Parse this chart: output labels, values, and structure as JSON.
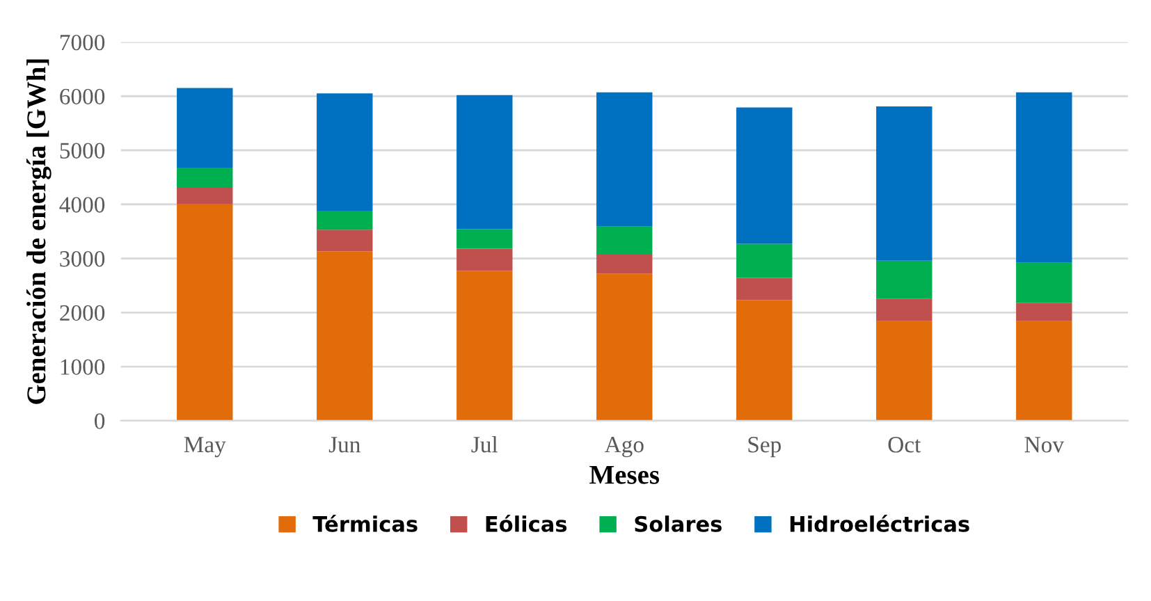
{
  "chart_data": {
    "type": "bar",
    "stacked": true,
    "xlabel": "Meses",
    "ylabel": "Generación de energía [GWh]",
    "categories": [
      "May",
      "Jun",
      "Jul",
      "Ago",
      "Sep",
      "Oct",
      "Nov"
    ],
    "series": [
      {
        "name": "Térmicas",
        "color": "#e36c0a",
        "values": [
          4000,
          3130,
          2770,
          2720,
          2230,
          1840,
          1840
        ]
      },
      {
        "name": "Eólicas",
        "color": "#c0504d",
        "values": [
          320,
          400,
          410,
          350,
          410,
          410,
          340
        ]
      },
      {
        "name": "Solares",
        "color": "#00b050",
        "values": [
          360,
          350,
          360,
          520,
          630,
          710,
          740
        ]
      },
      {
        "name": "Hidroeléctricas",
        "color": "#0070c0",
        "values": [
          1470,
          2170,
          2480,
          2480,
          2520,
          2850,
          3150
        ]
      }
    ],
    "ylim": [
      0,
      7000
    ],
    "yticks": [
      0,
      1000,
      2000,
      3000,
      4000,
      5000,
      6000,
      7000
    ],
    "grid": "y",
    "legend": "bottom"
  }
}
